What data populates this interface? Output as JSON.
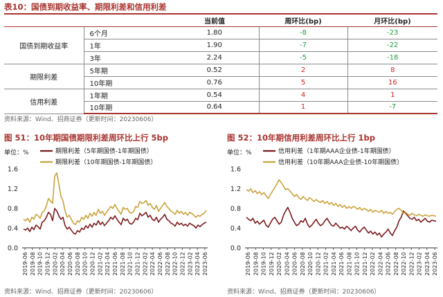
{
  "table": {
    "caption": "表10：国债到期收益率、期限利差和信用利差",
    "headers": [
      "",
      "",
      "当前值",
      "周环比(bp)",
      "月环比(bp)"
    ],
    "groups": [
      {
        "name": "国债到期收益率",
        "rows": [
          {
            "term": "6个月",
            "value": "1.80",
            "wow": "-8",
            "mom": "-23"
          },
          {
            "term": "1年",
            "value": "1.90",
            "wow": "-7",
            "mom": "-22"
          },
          {
            "term": "3年",
            "value": "2.24",
            "wow": "-5",
            "mom": "-18"
          }
        ]
      },
      {
        "name": "期限利差",
        "rows": [
          {
            "term": "5年期",
            "value": "0.52",
            "wow": "2",
            "mom": "8"
          },
          {
            "term": "10年期",
            "value": "0.76",
            "wow": "5",
            "mom": "16"
          }
        ]
      },
      {
        "name": "信用利差",
        "rows": [
          {
            "term": "1年期",
            "value": "0.54",
            "wow": "4",
            "mom": "1"
          },
          {
            "term": "10年期",
            "value": "0.64",
            "wow": "1",
            "mom": "-7"
          }
        ]
      }
    ],
    "source": "资料来源：Wind、招商证券（更新时间：20230606）"
  },
  "colors": {
    "dark_red": "#7a1a1c",
    "gold": "#c9a23a",
    "accent": "#a8322d",
    "neg": "#1e9a3a",
    "pos": "#d6211f"
  },
  "chart_data": [
    {
      "type": "line",
      "title": "图 51：10年期国债期限利差周环比上行 5bp",
      "unit_label": "单位：%",
      "ylim": [
        0.0,
        1.6
      ],
      "y_ticks": [
        "0.0",
        "0.4",
        "0.8",
        "1.2",
        "1.6"
      ],
      "x_ticks": [
        "2019-06",
        "2019-08",
        "2019-10",
        "2019-12",
        "2020-02",
        "2020-04",
        "2020-06",
        "2020-08",
        "2020-10",
        "2020-12",
        "2021-02",
        "2021-04",
        "2021-06",
        "2021-08",
        "2021-10",
        "2021-12",
        "2022-02",
        "2022-04",
        "2022-06",
        "2022-08",
        "2022-10",
        "2022-12",
        "2023-02",
        "2023-04",
        "2023-06"
      ],
      "series": [
        {
          "name": "期限利差（5年期国债-1年期国债）",
          "color": "#7a1a1c",
          "values": [
            0.38,
            0.36,
            0.4,
            0.33,
            0.42,
            0.37,
            0.46,
            0.43,
            0.38,
            0.52,
            0.55,
            0.62,
            0.72,
            0.68,
            0.55,
            0.8,
            0.75,
            0.65,
            0.58,
            0.62,
            0.45,
            0.38,
            0.42,
            0.36,
            0.3,
            0.28,
            0.35,
            0.32,
            0.4,
            0.37,
            0.45,
            0.4,
            0.48,
            0.42,
            0.5,
            0.46,
            0.55,
            0.47,
            0.52,
            0.45,
            0.5,
            0.55,
            0.62,
            0.58,
            0.65,
            0.58,
            0.52,
            0.47,
            0.6,
            0.55,
            0.58,
            0.5,
            0.48,
            0.52,
            0.6,
            0.57,
            0.7,
            0.65,
            0.68,
            0.72,
            0.62,
            0.66,
            0.58,
            0.55,
            0.62,
            0.52,
            0.58,
            0.62,
            0.68,
            0.58,
            0.55,
            0.5,
            0.48,
            0.44,
            0.52,
            0.47,
            0.5,
            0.45,
            0.48,
            0.44,
            0.5,
            0.47,
            0.45,
            0.4,
            0.46,
            0.43,
            0.47,
            0.5,
            0.52
          ]
        },
        {
          "name": "期限利差（10年期国债-1年期国债）",
          "color": "#c9a23a",
          "values": [
            0.58,
            0.55,
            0.6,
            0.52,
            0.62,
            0.58,
            0.68,
            0.65,
            0.6,
            0.72,
            0.75,
            0.85,
            1.0,
            0.95,
            0.9,
            1.45,
            1.52,
            1.3,
            1.05,
            0.95,
            0.75,
            0.62,
            0.66,
            0.58,
            0.5,
            0.47,
            0.55,
            0.52,
            0.62,
            0.58,
            0.66,
            0.6,
            0.7,
            0.64,
            0.72,
            0.66,
            0.78,
            0.7,
            0.74,
            0.66,
            0.72,
            0.78,
            0.84,
            0.8,
            0.88,
            0.8,
            0.74,
            0.68,
            0.82,
            0.78,
            0.8,
            0.72,
            0.7,
            0.74,
            0.84,
            0.82,
            0.94,
            0.9,
            0.92,
            0.96,
            0.86,
            0.9,
            0.82,
            0.78,
            0.86,
            0.74,
            0.8,
            0.86,
            0.92,
            0.84,
            0.8,
            0.74,
            0.72,
            0.68,
            0.76,
            0.7,
            0.74,
            0.68,
            0.72,
            0.66,
            0.72,
            0.7,
            0.66,
            0.62,
            0.66,
            0.64,
            0.68,
            0.7,
            0.76
          ]
        }
      ],
      "source": "资料来源：Wind、招商证券（更新时间：20230606）"
    },
    {
      "type": "line",
      "title": "图 52：10年期信用利差周环比上行 1bp",
      "unit_label": "单位：%",
      "ylim": [
        0.0,
        1.6
      ],
      "y_ticks": [
        "0.0",
        "0.4",
        "0.8",
        "1.2",
        "1.6"
      ],
      "x_ticks": [
        "2019-06",
        "2019-08",
        "2019-10",
        "2019-12",
        "2020-02",
        "2020-04",
        "2020-06",
        "2020-08",
        "2020-10",
        "2020-12",
        "2021-02",
        "2021-04",
        "2021-06",
        "2021-08",
        "2021-10",
        "2021-12",
        "2022-02",
        "2022-04",
        "2022-06",
        "2022-08",
        "2022-10",
        "2022-12",
        "2023-02",
        "2023-04",
        "2023-06"
      ],
      "series": [
        {
          "name": "信用利差（1年期AAA企业债-1年期国债）",
          "color": "#7a1a1c",
          "values": [
            0.62,
            0.58,
            0.55,
            0.6,
            0.5,
            0.54,
            0.48,
            0.52,
            0.56,
            0.46,
            0.42,
            0.5,
            0.58,
            0.62,
            0.55,
            0.48,
            0.52,
            0.66,
            0.75,
            0.82,
            0.72,
            0.6,
            0.52,
            0.45,
            0.48,
            0.55,
            0.52,
            0.6,
            0.48,
            0.42,
            0.46,
            0.52,
            0.58,
            0.5,
            0.45,
            0.48,
            0.55,
            0.6,
            0.52,
            0.46,
            0.44,
            0.5,
            0.45,
            0.4,
            0.42,
            0.38,
            0.44,
            0.4,
            0.35,
            0.4,
            0.44,
            0.36,
            0.32,
            0.38,
            0.42,
            0.36,
            0.3,
            0.34,
            0.28,
            0.32,
            0.26,
            0.3,
            0.22,
            0.28,
            0.32,
            0.38,
            0.3,
            0.25,
            0.35,
            0.42,
            0.55,
            0.62,
            0.75,
            0.7,
            0.65,
            0.6,
            0.58,
            0.62,
            0.55,
            0.58,
            0.52,
            0.56,
            0.6,
            0.54,
            0.52,
            0.56,
            0.55,
            0.54
          ]
        },
        {
          "name": "信用利差（10年期AAA企业债-10年期国债）",
          "color": "#c9a23a",
          "values": [
            1.18,
            1.15,
            1.2,
            1.12,
            1.16,
            1.1,
            1.14,
            1.08,
            1.12,
            1.06,
            1.0,
            1.08,
            1.15,
            1.22,
            1.3,
            1.38,
            1.32,
            1.25,
            1.18,
            1.2,
            1.15,
            1.1,
            1.04,
            1.08,
            1.02,
            0.98,
            1.04,
            1.0,
            0.96,
            1.02,
            0.98,
            0.94,
            0.98,
            0.94,
            0.92,
            0.96,
            0.9,
            0.94,
            0.88,
            0.92,
            0.86,
            0.9,
            0.84,
            0.88,
            0.82,
            0.86,
            0.8,
            0.84,
            0.8,
            0.84,
            0.82,
            0.78,
            0.82,
            0.76,
            0.8,
            0.78,
            0.74,
            0.78,
            0.72,
            0.76,
            0.74,
            0.72,
            0.76,
            0.7,
            0.74,
            0.7,
            0.72,
            0.68,
            0.74,
            0.78,
            0.8,
            0.76,
            0.7,
            0.72,
            0.68,
            0.66,
            0.7,
            0.67,
            0.65,
            0.68,
            0.66,
            0.64,
            0.67,
            0.65,
            0.64,
            0.66,
            0.65,
            0.64
          ]
        }
      ],
      "source": "资料来源：Wind、招商证券（更新时间：20230606）"
    }
  ]
}
